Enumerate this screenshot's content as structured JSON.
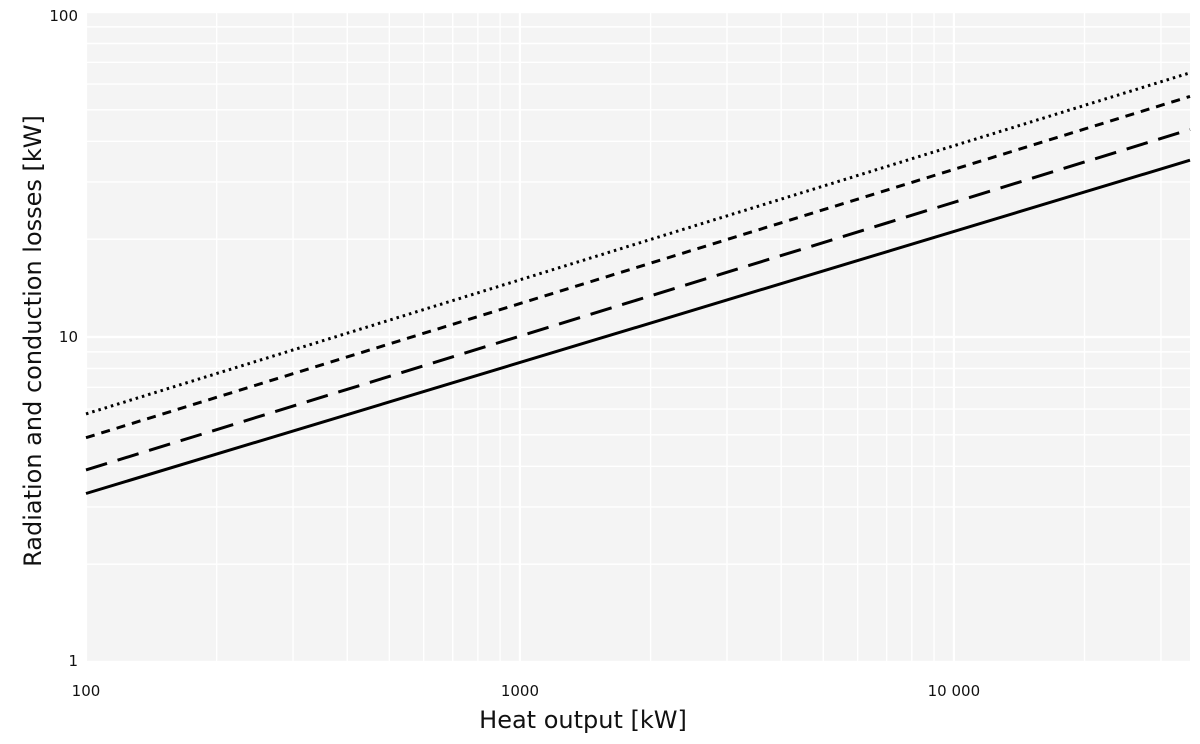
{
  "chart_data": {
    "type": "line",
    "title": "",
    "xlabel": "Heat output [kW]",
    "ylabel": "Radiation and conduction losses [kW]",
    "x_scale": "log",
    "y_scale": "log",
    "xlim": [
      100,
      35000
    ],
    "ylim": [
      1,
      100
    ],
    "grid": true,
    "legend": "none",
    "x_ticks": [
      {
        "value": 100,
        "label": "100"
      },
      {
        "value": 1000,
        "label": "1000"
      },
      {
        "value": 10000,
        "label": "10 000"
      }
    ],
    "y_ticks": [
      {
        "value": 1,
        "label": "1"
      },
      {
        "value": 10,
        "label": "10"
      },
      {
        "value": 100,
        "label": "100"
      }
    ],
    "series": [
      {
        "style": "dotted",
        "x": [
          100,
          35000
        ],
        "y": [
          5.8,
          65
        ]
      },
      {
        "style": "short-dash",
        "x": [
          100,
          35000
        ],
        "y": [
          4.9,
          55
        ]
      },
      {
        "style": "long-dash",
        "x": [
          100,
          35000
        ],
        "y": [
          3.9,
          43.5
        ]
      },
      {
        "style": "solid",
        "x": [
          100,
          35000
        ],
        "y": [
          3.3,
          35
        ]
      }
    ],
    "colors": {
      "plot_background": "#f4f4f4",
      "grid": "#ffffff",
      "line": "#000000"
    }
  }
}
